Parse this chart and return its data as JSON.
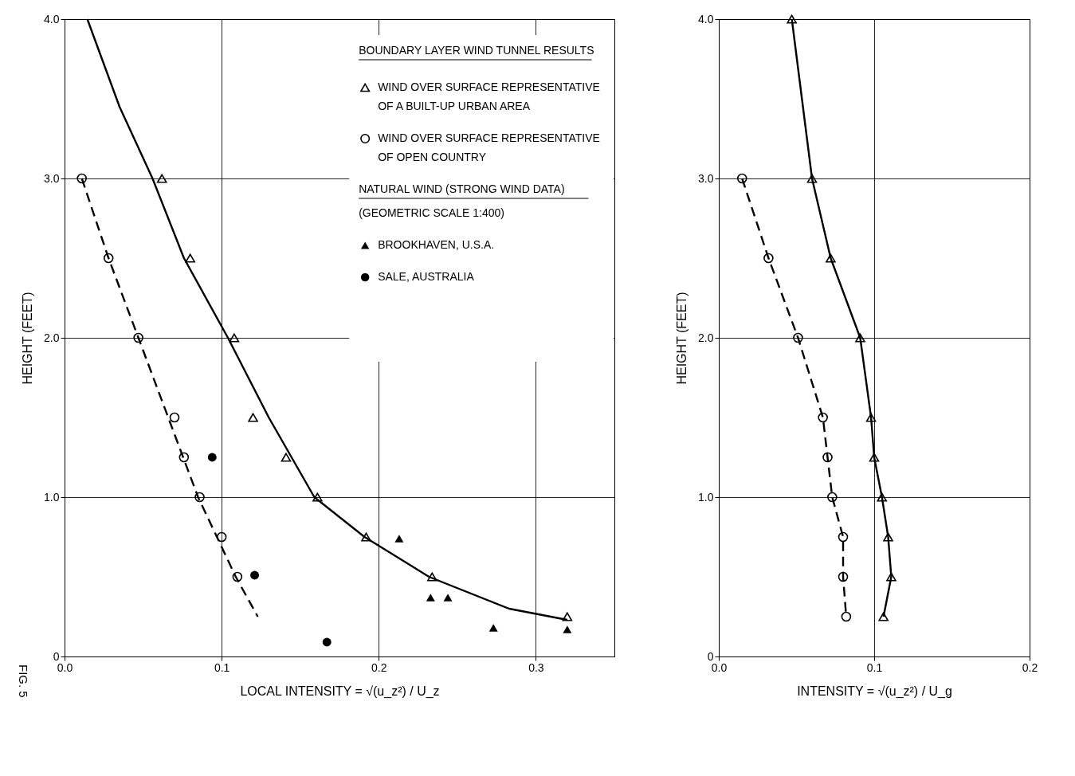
{
  "chart_data": [
    {
      "type": "scatter",
      "xlabel": "LOCAL INTENSITY = √(u_z²) / U_z",
      "ylabel": "HEIGHT (FEET)",
      "legend_title": "BOUNDARY LAYER WIND TUNNEL RESULTS",
      "legend": "top right",
      "grid": true,
      "xlim": [
        0,
        0.35
      ],
      "xticks": [
        {
          "value": 0,
          "label": "0.0"
        },
        0.1,
        0.2,
        0.3
      ],
      "ylim": [
        0,
        4
      ],
      "yticks": [
        0,
        {
          "value": 1,
          "label": "1.0"
        },
        {
          "value": 2,
          "label": "2.0"
        },
        {
          "value": 3,
          "label": "3.0"
        },
        {
          "value": 4,
          "label": "4.0"
        }
      ],
      "annotations": [
        "NATURAL WIND (STRONG WIND DATA)",
        "(GEOMETRIC SCALE 1:400)",
        "FIG. 5"
      ],
      "series": [
        {
          "name": "WIND OVER SURFACE REPRESENTATIVE OF A BUILT-UP URBAN AREA",
          "color": "#000000",
          "marker": "triangle",
          "x": [
            0.062,
            0.08,
            0.108,
            0.12,
            0.141,
            0.161,
            0.192,
            0.234,
            0.32
          ],
          "values": [
            3.0,
            2.5,
            2.0,
            1.5,
            1.25,
            1.0,
            0.75,
            0.5,
            0.25
          ]
        },
        {
          "name": "WIND OVER SURFACE REPRESENTATIVE OF OPEN COUNTRY",
          "color": "#000000",
          "marker": "circle",
          "x": [
            0.011,
            0.028,
            0.047,
            0.07,
            0.076,
            0.086,
            0.1,
            0.11
          ],
          "values": [
            3.0,
            2.5,
            2.0,
            1.5,
            1.25,
            1.0,
            0.75,
            0.5
          ]
        },
        {
          "name": "BROOKHAVEN, U.S.A.",
          "color": "#000000",
          "marker": "triangle",
          "x": [
            0.213,
            0.233,
            0.244,
            0.273,
            0.32
          ],
          "values": [
            0.74,
            0.37,
            0.37,
            0.18,
            0.17
          ]
        },
        {
          "name": "SALE, AUSTRALIA",
          "color": "#000000",
          "marker": "circle",
          "x": [
            0.094,
            0.121,
            0.167
          ],
          "values": [
            1.25,
            0.51,
            0.09
          ]
        },
        {
          "type": "line",
          "color": "#000000",
          "line_style": "solid",
          "marker": "none",
          "x": [
            0.0145,
            0.035,
            0.056,
            0.076,
            0.104,
            0.13,
            0.159,
            0.191,
            0.232,
            0.283,
            0.32
          ],
          "values": [
            4.0,
            3.45,
            3.0,
            2.5,
            2.0,
            1.5,
            1.0,
            0.75,
            0.5,
            0.3,
            0.23
          ]
        },
        {
          "type": "line",
          "color": "#000000",
          "line_style": "dashed",
          "marker": "none",
          "x": [
            0.011,
            0.028,
            0.047,
            0.066,
            0.085,
            0.109,
            0.123
          ],
          "values": [
            3.0,
            2.5,
            2.0,
            1.5,
            1.0,
            0.5,
            0.25
          ]
        }
      ]
    },
    {
      "type": "line",
      "xlabel": "INTENSITY = √(u_z²) / U_g",
      "ylabel": "HEIGHT (FEET)",
      "grid": true,
      "legend": false,
      "xlim": [
        0,
        0.2
      ],
      "xticks": [
        {
          "value": 0,
          "label": "0.0"
        },
        0.1,
        0.2
      ],
      "ylim": [
        0,
        4
      ],
      "yticks": [
        0,
        {
          "value": 1,
          "label": "1.0"
        },
        {
          "value": 2,
          "label": "2.0"
        },
        {
          "value": 3,
          "label": "3.0"
        },
        {
          "value": 4,
          "label": "4.0"
        }
      ],
      "series": [
        {
          "color": "#000000",
          "marker": "triangle",
          "line_style": "solid",
          "x": [
            0.047,
            0.06,
            0.072,
            0.091,
            0.098,
            0.1,
            0.105,
            0.109,
            0.111,
            0.106
          ],
          "values": [
            4.0,
            3.0,
            2.5,
            2.0,
            1.5,
            1.25,
            1.0,
            0.75,
            0.5,
            0.25
          ]
        },
        {
          "color": "#000000",
          "marker": "circle",
          "line_style": "dashed",
          "x": [
            0.015,
            0.032,
            0.051,
            0.067,
            0.07,
            0.073,
            0.08,
            0.08,
            0.082
          ],
          "values": [
            3.0,
            2.5,
            2.0,
            1.5,
            1.25,
            1.0,
            0.75,
            0.5,
            0.25
          ]
        }
      ]
    }
  ]
}
